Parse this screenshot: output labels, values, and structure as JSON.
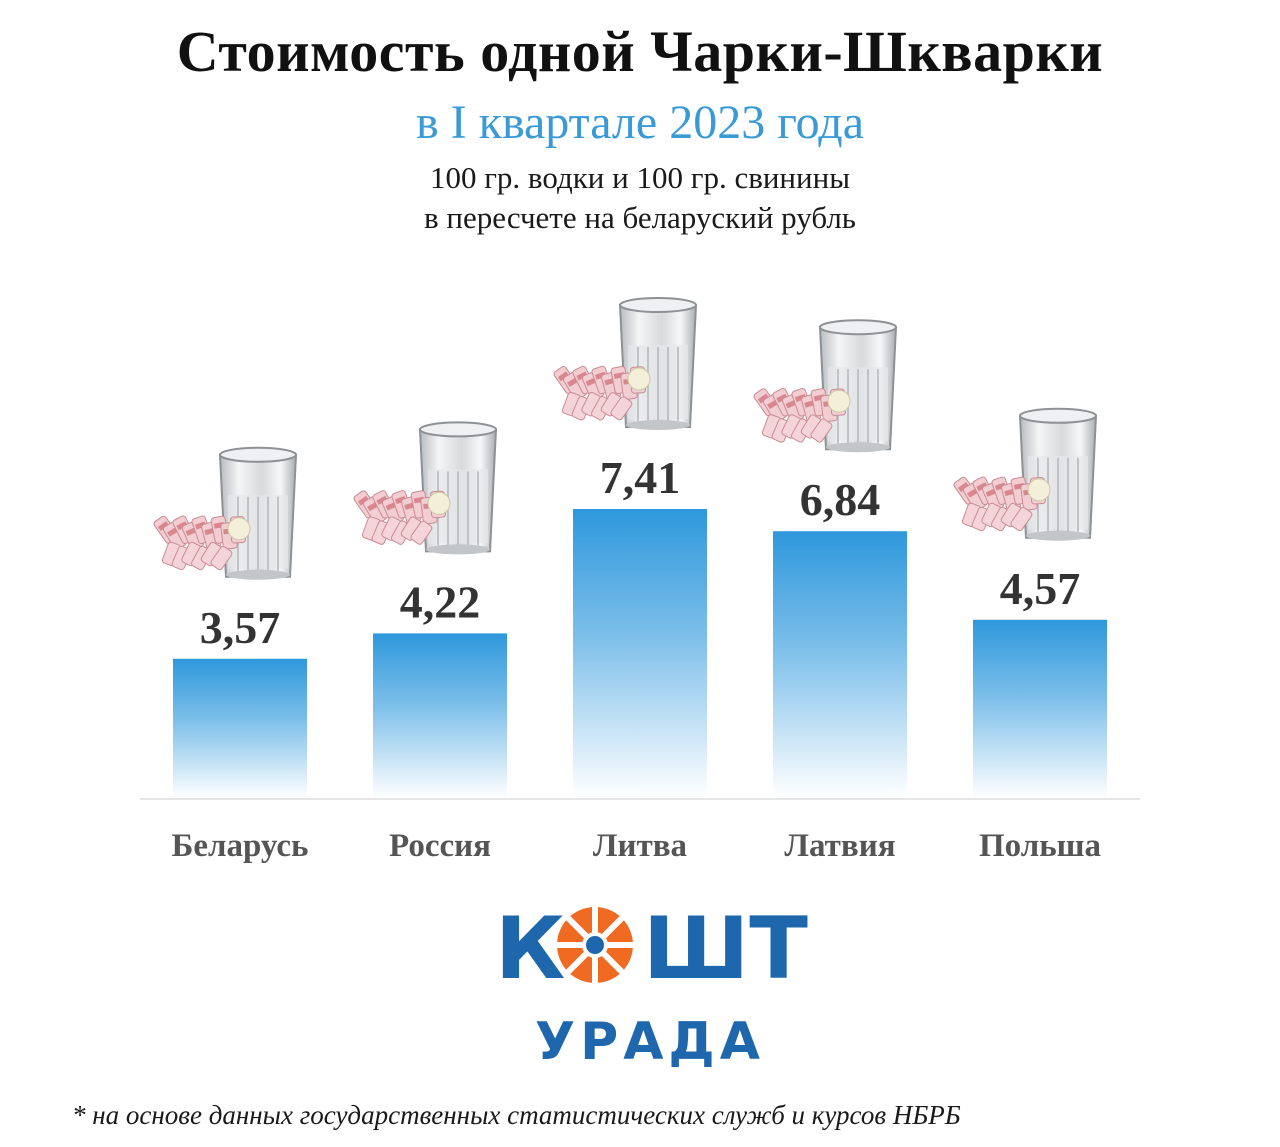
{
  "title": "Стоимость одной Чарки-Шкварки",
  "subtitle": "в I квартале 2023 года",
  "description_line1": "100 гр. водки и 100 гр. свинины",
  "description_line2": "в пересчете на беларуский рубль",
  "chart_data": {
    "type": "bar",
    "categories": [
      "Беларусь",
      "Россия",
      "Литва",
      "Латвия",
      "Польша"
    ],
    "values": [
      3.57,
      4.22,
      7.41,
      6.84,
      4.57
    ],
    "value_labels": [
      "3,57",
      "4,22",
      "7,41",
      "6,84",
      "4,57"
    ],
    "ylim": [
      0,
      7.41
    ],
    "grid": false,
    "bar_color": "#2e98dc",
    "bar_style": "vertical gradient to white",
    "bar_decoration": [
      "vodka-glass-icon",
      "pork-lard-icon"
    ],
    "xlabel": "",
    "ylabel": ""
  },
  "logo": {
    "letters_left": "К",
    "letters_right": "ШТ",
    "subtext": "УРАДА",
    "primary_color": "#1f67ad",
    "accent_color": "#f06a22"
  },
  "footnote": "* на основе данных государственных статистических служб и курсов НБРБ"
}
